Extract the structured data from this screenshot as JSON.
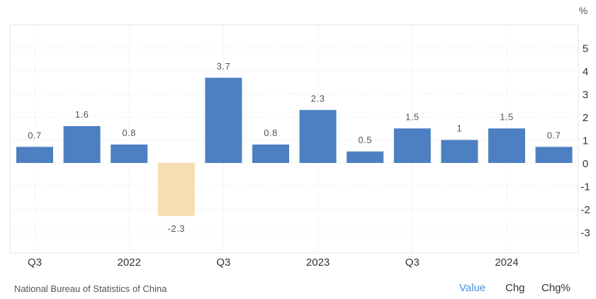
{
  "chart_data": {
    "type": "bar",
    "unit": "%",
    "categories": [
      "",
      "",
      "",
      "",
      "",
      "",
      "",
      "",
      "",
      "",
      "",
      ""
    ],
    "values": [
      0.7,
      1.6,
      0.8,
      -2.3,
      3.7,
      0.8,
      2.3,
      0.5,
      1.5,
      1,
      1.5,
      0.7
    ],
    "value_labels": [
      "0.7",
      "1.6",
      "0.8",
      "-2.3",
      "3.7",
      "0.8",
      "2.3",
      "0.5",
      "1.5",
      "1",
      "1.5",
      "0.7"
    ],
    "x_tick_labels": [
      {
        "index": 0,
        "label": "Q3"
      },
      {
        "index": 2,
        "label": "2022"
      },
      {
        "index": 4,
        "label": "Q3"
      },
      {
        "index": 6,
        "label": "2023"
      },
      {
        "index": 8,
        "label": "Q3"
      },
      {
        "index": 10,
        "label": "2024"
      }
    ],
    "y_ticks": [
      5,
      4,
      3,
      2,
      1,
      0,
      -1,
      -2,
      -3
    ],
    "y_tick_labels": [
      "5",
      "4",
      "3",
      "2",
      "1",
      "0",
      "-1",
      "-2",
      "-3"
    ],
    "ylim": [
      -4,
      6
    ],
    "grid": true,
    "colors": {
      "positive": "#4d80c2",
      "negative": "#f5deb0"
    }
  },
  "footer": {
    "source": "National Bureau of Statistics of China",
    "tabs": [
      {
        "label": "Value",
        "color": "#4a90d9"
      },
      {
        "label": "Chg",
        "color": "#333333"
      },
      {
        "label": "Chg%",
        "color": "#333333"
      }
    ]
  }
}
